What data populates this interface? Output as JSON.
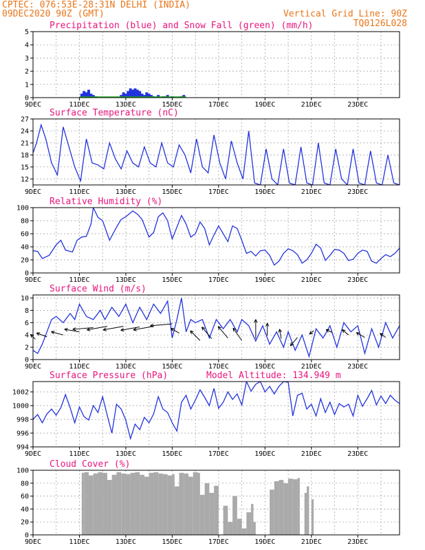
{
  "header": {
    "line1_left": "CPTEC:   076:53E-28:31N   DELHI (INDIA)",
    "line2_left": "09DEC2020 90Z (GMT)",
    "line2_right": "Vertical Grid Line: 90Z",
    "line3_right": "TQ0126L028"
  },
  "colors": {
    "line": "#2233dd",
    "title": "#e8147d",
    "header": "#e8761a",
    "precip": "#2233dd",
    "snow": "#22aa22",
    "cloud": "#aaaaaa"
  },
  "chart_data": [
    {
      "id": "precip",
      "type": "bar",
      "title": "Precipitation (blue) and Snow Fall (green) (mm/h)",
      "ylim": [
        0,
        5
      ],
      "yticks": [
        0,
        1,
        2,
        3,
        4,
        5
      ],
      "xticks": [
        "9DEC",
        "11DEC",
        "13DEC",
        "15DEC",
        "17DEC",
        "19DEC",
        "21DEC",
        "23DEC"
      ],
      "xlim_days": [
        9,
        24.8
      ],
      "series": [
        {
          "name": "Precipitation",
          "x": [
            11.1,
            11.2,
            11.3,
            11.4,
            11.5,
            11.6,
            11.7,
            12.8,
            12.9,
            13.0,
            13.1,
            13.2,
            13.3,
            13.4,
            13.5,
            13.6,
            13.7,
            13.8,
            13.9,
            14.0,
            14.1,
            14.2,
            14.4,
            14.6,
            14.7,
            14.8,
            15.0,
            15.4,
            15.5
          ],
          "values": [
            0.3,
            0.5,
            0.4,
            0.6,
            0.3,
            0.2,
            0.1,
            0.2,
            0.4,
            0.3,
            0.5,
            0.7,
            0.6,
            0.7,
            0.6,
            0.5,
            0.3,
            0.2,
            0.4,
            0.3,
            0.2,
            0.1,
            0.2,
            0.1,
            0.1,
            0.2,
            0.1,
            0.1,
            0.2
          ]
        }
      ]
    },
    {
      "id": "temp",
      "type": "line",
      "title": "Surface Temperature (nC)",
      "ylim": [
        10.5,
        27
      ],
      "yticks": [
        12,
        15,
        18,
        21,
        24,
        27
      ],
      "xticks": [
        "9DEC",
        "11DEC",
        "13DEC",
        "15DEC",
        "17DEC",
        "19DEC",
        "21DEC",
        "23DEC"
      ],
      "xlim_days": [
        9,
        24.8
      ],
      "series": [
        {
          "name": "Temperature",
          "x": [
            9.0,
            9.15,
            9.35,
            9.55,
            9.8,
            10.05,
            10.3,
            10.55,
            10.8,
            11.05,
            11.3,
            11.55,
            11.8,
            12.05,
            12.3,
            12.55,
            12.8,
            13.05,
            13.3,
            13.55,
            13.8,
            14.05,
            14.3,
            14.55,
            14.8,
            15.05,
            15.3,
            15.55,
            15.8,
            16.05,
            16.3,
            16.55,
            16.8,
            17.05,
            17.3,
            17.55,
            17.8,
            18.05,
            18.3,
            18.55,
            18.8,
            19.05,
            19.3,
            19.55,
            19.8,
            20.05,
            20.3,
            20.55,
            20.8,
            21.05,
            21.3,
            21.55,
            21.8,
            22.05,
            22.3,
            22.55,
            22.8,
            23.05,
            23.3,
            23.55,
            23.8,
            24.05,
            24.3,
            24.55,
            24.8
          ],
          "values": [
            18.5,
            21,
            25.5,
            22,
            16,
            13,
            25,
            20,
            15,
            11.5,
            22,
            16,
            15.5,
            14.5,
            21,
            17,
            14.5,
            19,
            16,
            15,
            20,
            16,
            15,
            21,
            16,
            15,
            20.5,
            18,
            13.5,
            22,
            15,
            13.5,
            23,
            16,
            12,
            21.5,
            16,
            12,
            24,
            11,
            10.5,
            19.5,
            12,
            10.5,
            19.5,
            11,
            10.5,
            20,
            11,
            10.5,
            21,
            11,
            10.5,
            19.5,
            12,
            10.5,
            19.5,
            11,
            10.5,
            19,
            11,
            10.5,
            18,
            11,
            10.5
          ]
        }
      ]
    },
    {
      "id": "rh",
      "type": "line",
      "title": "Relative Humidity (%)",
      "ylim": [
        0,
        100
      ],
      "yticks": [
        0,
        20,
        40,
        60,
        80,
        100
      ],
      "xticks": [
        "9DEC",
        "11DEC",
        "13DEC",
        "15DEC",
        "17DEC",
        "19DEC",
        "21DEC",
        "23DEC"
      ],
      "xlim_days": [
        9,
        24.8
      ],
      "series": [
        {
          "name": "Relative Humidity",
          "x": [
            9.0,
            9.2,
            9.4,
            9.7,
            10.0,
            10.2,
            10.4,
            10.7,
            10.9,
            11.1,
            11.3,
            11.5,
            11.6,
            11.8,
            12.0,
            12.3,
            12.6,
            12.8,
            13.0,
            13.3,
            13.5,
            13.7,
            14.0,
            14.2,
            14.4,
            14.6,
            14.8,
            15.0,
            15.2,
            15.4,
            15.6,
            15.8,
            16.0,
            16.2,
            16.4,
            16.6,
            16.8,
            17.0,
            17.2,
            17.4,
            17.6,
            17.8,
            18.0,
            18.2,
            18.4,
            18.6,
            18.8,
            19.0,
            19.2,
            19.4,
            19.6,
            19.8,
            20.0,
            20.2,
            20.4,
            20.6,
            20.8,
            21.0,
            21.2,
            21.4,
            21.6,
            21.8,
            22.0,
            22.2,
            22.4,
            22.6,
            22.8,
            23.0,
            23.2,
            23.4,
            23.6,
            23.8,
            24.0,
            24.2,
            24.4,
            24.6,
            24.8
          ],
          "values": [
            34,
            33,
            22,
            27,
            43,
            50,
            35,
            32,
            50,
            55,
            56,
            75,
            100,
            85,
            80,
            50,
            70,
            82,
            86,
            95,
            90,
            82,
            55,
            62,
            86,
            92,
            80,
            52,
            70,
            88,
            75,
            55,
            60,
            78,
            68,
            43,
            58,
            72,
            60,
            48,
            72,
            68,
            50,
            30,
            33,
            26,
            34,
            35,
            27,
            12,
            18,
            30,
            37,
            34,
            28,
            15,
            20,
            30,
            44,
            38,
            19,
            27,
            36,
            35,
            30,
            19,
            21,
            30,
            35,
            33,
            18,
            15,
            22,
            28,
            25,
            30,
            38
          ]
        }
      ]
    },
    {
      "id": "wind",
      "type": "line",
      "title": "Surface Wind (m/s)",
      "ylim": [
        0,
        10.5
      ],
      "yticks": [
        0,
        2,
        4,
        6,
        8,
        10
      ],
      "xticks": [
        "9DEC",
        "11DEC",
        "13DEC",
        "15DEC",
        "17DEC",
        "19DEC",
        "21DEC",
        "23DEC"
      ],
      "xlim_days": [
        9,
        24.8
      ],
      "series": [
        {
          "name": "Wind speed",
          "x": [
            9.0,
            9.2,
            9.4,
            9.6,
            9.8,
            10.0,
            10.3,
            10.6,
            10.8,
            11.0,
            11.3,
            11.6,
            11.9,
            12.1,
            12.4,
            12.7,
            13.0,
            13.3,
            13.6,
            13.9,
            14.2,
            14.5,
            14.8,
            15.0,
            15.2,
            15.4,
            15.6,
            15.8,
            16.0,
            16.3,
            16.6,
            16.9,
            17.2,
            17.5,
            17.8,
            18.0,
            18.3,
            18.6,
            18.9,
            19.2,
            19.5,
            19.8,
            20.0,
            20.3,
            20.6,
            20.9,
            21.2,
            21.5,
            21.8,
            22.1,
            22.4,
            22.7,
            23.0,
            23.3,
            23.6,
            23.9,
            24.2,
            24.5,
            24.8
          ],
          "values": [
            1.5,
            1,
            2.5,
            4.5,
            6.5,
            7,
            6,
            7.5,
            6.5,
            9,
            7,
            6.5,
            8,
            6.5,
            8.5,
            7,
            9,
            6,
            8.5,
            6.5,
            9,
            7.5,
            9.5,
            3.5,
            6.5,
            10,
            4.5,
            6.5,
            6,
            6.5,
            3.5,
            6.5,
            5,
            6.5,
            4.5,
            6.5,
            5.5,
            3,
            5.5,
            2.5,
            4.5,
            2,
            4.5,
            1.5,
            4,
            0.5,
            5,
            3.5,
            5.5,
            2,
            6,
            4.5,
            5.5,
            1,
            5,
            2,
            6,
            3.5,
            5.5
          ]
        }
      ],
      "arrows": {
        "x": [
          9.1,
          9.6,
          10.3,
          11.0,
          11.6,
          12.2,
          12.9,
          13.6,
          14.2,
          15.0,
          15.3,
          16.2,
          16.7,
          17.4,
          18.0,
          18.6,
          19.1,
          19.7,
          20.4,
          21.1,
          21.9,
          22.6,
          23.3,
          24.2
        ],
        "y": [
          3.3,
          3.7,
          4.0,
          4.5,
          5.2,
          5.4,
          5.4,
          5.3,
          5.4,
          5.8,
          4.3,
          3.1,
          3.4,
          3.5,
          3.1,
          3.4,
          3.9,
          3.4,
          3.6,
          4.7,
          4.4,
          4.0,
          3.6,
          3.6
        ],
        "dir_deg": [
          225,
          200,
          195,
          190,
          175,
          170,
          170,
          170,
          170,
          175,
          210,
          225,
          230,
          230,
          235,
          270,
          270,
          260,
          130,
          140,
          205,
          220,
          210,
          215
        ],
        "len": [
          10,
          16,
          18,
          22,
          30,
          30,
          30,
          28,
          30,
          32,
          14,
          20,
          22,
          22,
          22,
          28,
          18,
          14,
          16,
          8,
          10,
          12,
          14,
          10
        ]
      }
    },
    {
      "id": "pressure",
      "type": "line",
      "title": "Surface Pressure (hPa)",
      "subtitle": "Model Altitude: 134.949 m",
      "ylim": [
        994,
        1003.5
      ],
      "yticks": [
        994,
        996,
        998,
        1000,
        1002
      ],
      "xticks": [
        "9DEC",
        "11DEC",
        "13DEC",
        "15DEC",
        "17DEC",
        "19DEC",
        "21DEC",
        "23DEC"
      ],
      "xlim_days": [
        9,
        24.8
      ],
      "series": [
        {
          "name": "Pressure",
          "x": [
            9.0,
            9.2,
            9.4,
            9.6,
            9.8,
            10.0,
            10.2,
            10.4,
            10.6,
            10.8,
            11.0,
            11.2,
            11.4,
            11.6,
            11.8,
            12.0,
            12.2,
            12.4,
            12.6,
            12.8,
            13.0,
            13.2,
            13.4,
            13.6,
            13.8,
            14.0,
            14.2,
            14.4,
            14.6,
            14.8,
            15.0,
            15.2,
            15.4,
            15.6,
            15.8,
            16.0,
            16.2,
            16.4,
            16.6,
            16.8,
            17.0,
            17.2,
            17.4,
            17.6,
            17.8,
            18.0,
            18.2,
            18.4,
            18.6,
            18.8,
            19.0,
            19.2,
            19.4,
            19.6,
            19.8,
            20.0,
            20.2,
            20.4,
            20.6,
            20.8,
            21.0,
            21.2,
            21.4,
            21.6,
            21.8,
            22.0,
            22.2,
            22.4,
            22.6,
            22.8,
            23.0,
            23.2,
            23.4,
            23.6,
            23.8,
            24.0,
            24.2,
            24.4,
            24.6,
            24.8
          ],
          "values": [
            998,
            998.7,
            997.5,
            998.8,
            999.5,
            998.6,
            999.7,
            1001.6,
            999.7,
            997.5,
            999.8,
            998.4,
            997.9,
            1000,
            999,
            1001.3,
            998.6,
            996,
            1000.2,
            999.5,
            997.9,
            995.2,
            997.3,
            996.5,
            998.3,
            997.5,
            998.8,
            1001.3,
            999.5,
            999,
            997.5,
            996.3,
            1000.5,
            1001.5,
            999.5,
            1000.8,
            1002.3,
            1001.2,
            1000,
            1002.5,
            999.6,
            1000.5,
            1002,
            1000.9,
            1001.7,
            1000.1,
            1003.5,
            1002.1,
            1003.1,
            1003.5,
            1002,
            1002.8,
            1001.7,
            1002.8,
            1003.5,
            1003.4,
            998.5,
            1001.5,
            1001.8,
            999.5,
            1000.2,
            998.5,
            1001,
            999,
            1000.5,
            998.7,
            1000.3,
            999.8,
            1000.2,
            998.5,
            1001.5,
            999.9,
            1001,
            1002.2,
            1000.1,
            1001.4,
            1000.3,
            1001.5,
            1000.8,
            1000.3
          ]
        }
      ]
    },
    {
      "id": "cloud",
      "type": "area",
      "title": "Cloud Cover (%)",
      "ylim": [
        0,
        100
      ],
      "yticks": [
        0,
        20,
        40,
        60,
        80,
        100
      ],
      "xticks": [
        "9DEC",
        "11DEC",
        "13DEC",
        "15DEC",
        "17DEC",
        "19DEC",
        "21DEC",
        "23DEC"
      ],
      "xlim_days": [
        9,
        24.8
      ],
      "series": [
        {
          "name": "Cloud cover",
          "x": [
            11.0,
            11.1,
            11.2,
            11.4,
            11.6,
            11.8,
            12.0,
            12.2,
            12.4,
            12.6,
            12.8,
            13.0,
            13.2,
            13.4,
            13.6,
            13.8,
            14.0,
            14.2,
            14.4,
            14.6,
            14.8,
            15.0,
            15.1,
            15.3,
            15.5,
            15.7,
            15.9,
            16.1,
            16.2,
            16.4,
            16.6,
            16.8,
            17.0,
            17.2,
            17.4,
            17.6,
            17.8,
            18.0,
            18.2,
            18.4,
            18.5,
            18.6,
            18.8,
            19.0,
            19.2,
            19.4,
            19.6,
            19.8,
            20.0,
            20.2,
            20.4,
            20.5,
            20.6,
            20.7,
            20.8,
            20.9,
            21.0,
            21.1
          ],
          "values": [
            0,
            96,
            97,
            92,
            95,
            97,
            96,
            85,
            93,
            97,
            95,
            94,
            96,
            97,
            93,
            90,
            96,
            97,
            95,
            94,
            92,
            94,
            75,
            96,
            95,
            90,
            97,
            96,
            62,
            80,
            65,
            76,
            0,
            45,
            20,
            60,
            25,
            10,
            35,
            48,
            20,
            0,
            0,
            0,
            70,
            83,
            85,
            80,
            87,
            86,
            88,
            0,
            0,
            65,
            75,
            0,
            55,
            0
          ]
        }
      ]
    }
  ]
}
